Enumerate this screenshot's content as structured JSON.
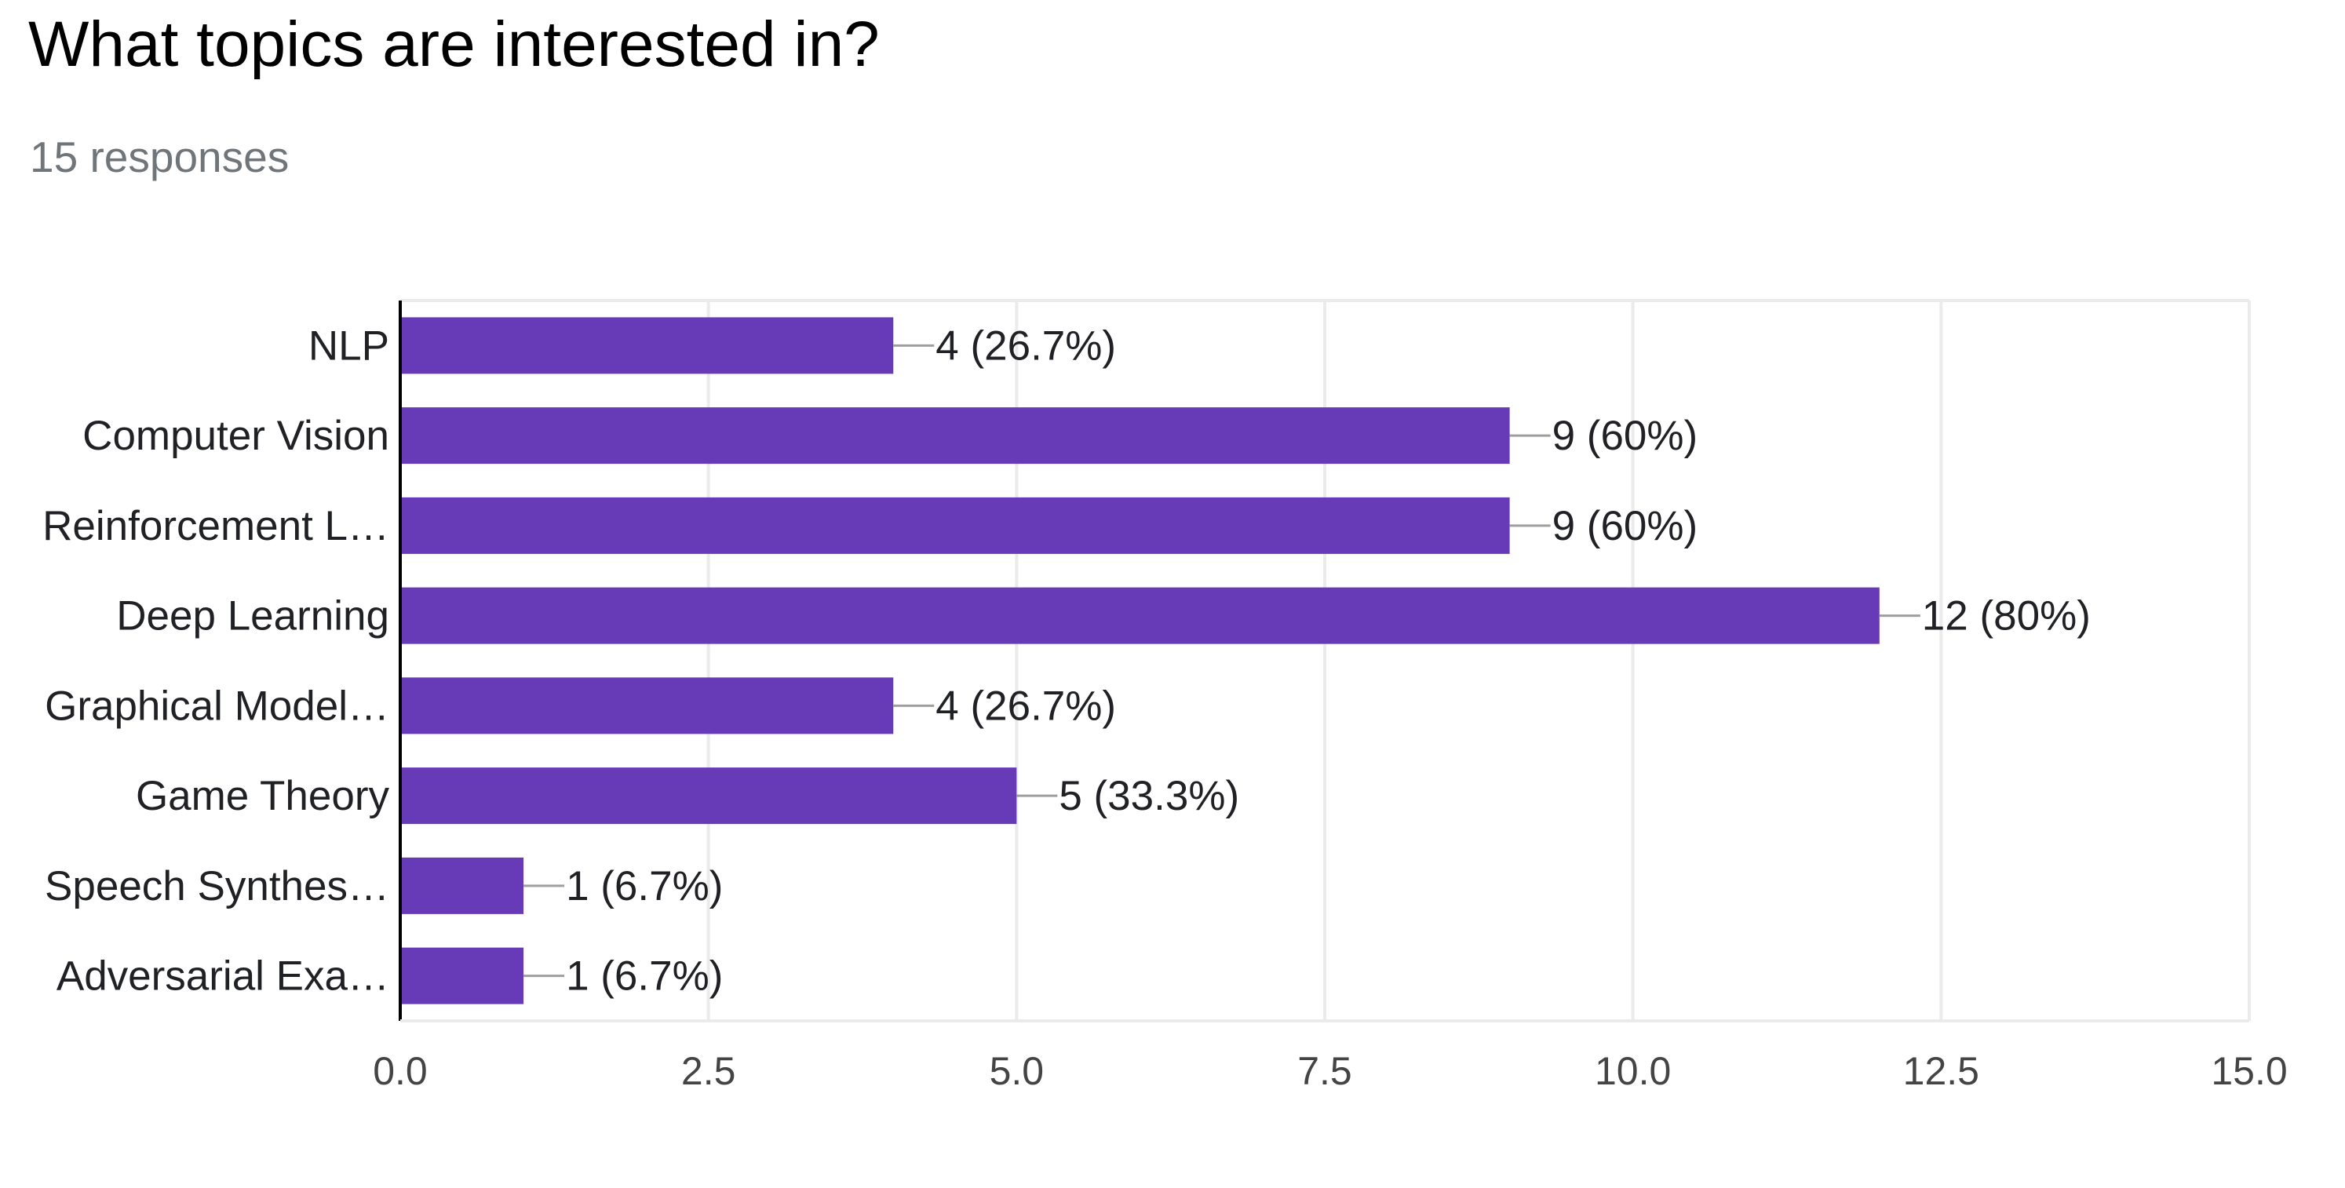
{
  "question": {
    "title": "What topics are interested in?",
    "responses": "15 responses"
  },
  "colors": {
    "bar": "#673ab7",
    "grid": "#ebebeb",
    "axis": "#000000",
    "leader": "#9e9e9e",
    "text": "#202124",
    "tick_text": "#444444"
  },
  "chart_data": {
    "type": "bar",
    "orientation": "horizontal",
    "categories": [
      "NLP",
      "Computer Vision",
      "Reinforcement L…",
      "Deep Learning",
      "Graphical Model…",
      "Game Theory",
      "Speech Synthes…",
      "Adversarial Exa…"
    ],
    "values": [
      4,
      9,
      9,
      12,
      4,
      5,
      1,
      1
    ],
    "data_labels": [
      "4 (26.7%)",
      "9 (60%)",
      "9 (60%)",
      "12 (80%)",
      "4 (26.7%)",
      "5 (33.3%)",
      "1 (6.7%)",
      "1 (6.7%)"
    ],
    "xlim": [
      0,
      15
    ],
    "x_ticks": [
      0,
      2.5,
      5,
      7.5,
      10,
      12.5,
      15
    ],
    "x_tick_labels": [
      "0.0",
      "2.5",
      "5.0",
      "7.5",
      "10.0",
      "12.5",
      "15.0"
    ],
    "grid": true,
    "legend": "none"
  }
}
